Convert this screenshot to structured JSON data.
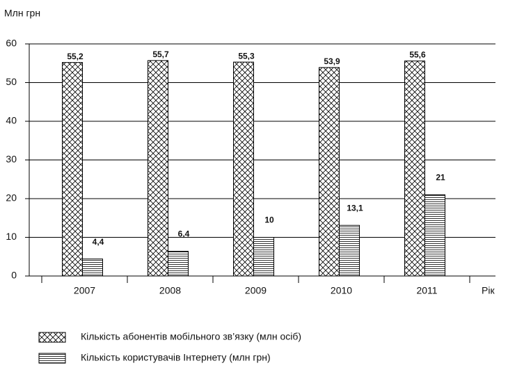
{
  "chart_data": {
    "type": "bar",
    "ylabel": "Млн грн",
    "xlabel": "Рік",
    "categories": [
      "2007",
      "2008",
      "2009",
      "2010",
      "2011"
    ],
    "series": [
      {
        "name": "Кількість абонентів мобільного зв’язку  (млн осіб)",
        "color": "#000000",
        "pattern": "crosshatch",
        "values": [
          55.2,
          55.7,
          55.3,
          53.9,
          55.6
        ],
        "value_labels": [
          "55,2",
          "55,7",
          "55,3",
          "53,9",
          "55,6"
        ]
      },
      {
        "name": "Кількість користувачів Інтернету  (млн грн)",
        "color": "#000000",
        "pattern": "horizontal",
        "values": [
          4.4,
          6.4,
          10,
          13.1,
          21
        ],
        "value_labels": [
          "4,4",
          "6,4",
          "10",
          "13,1",
          "21"
        ]
      }
    ],
    "ylim": [
      0,
      60
    ],
    "yticks": [
      0,
      10,
      20,
      30,
      40,
      50,
      60
    ],
    "grid": true
  }
}
